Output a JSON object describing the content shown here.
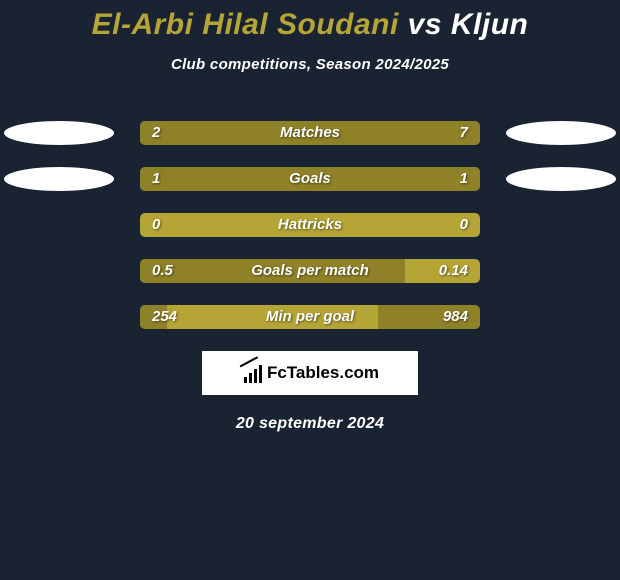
{
  "background_color": "#1a2332",
  "title": {
    "player1": "El-Arbi Hilal Soudani",
    "vs": "vs",
    "player2": "Kljun",
    "player1_color": "#b5a436",
    "player2_color": "#ffffff",
    "fontsize": 30
  },
  "subtitle": "Club competitions, Season 2024/2025",
  "bar": {
    "track_color": "#b5a436",
    "fill_color": "#8f8128",
    "track_width": 340,
    "track_height": 24,
    "radius": 5
  },
  "badge": {
    "color": "#ffffff",
    "width": 110,
    "height": 24
  },
  "rows": [
    {
      "metric": "Matches",
      "left": "2",
      "right": "7",
      "left_pct": 20,
      "right_pct": 80,
      "show_badges": true
    },
    {
      "metric": "Goals",
      "left": "1",
      "right": "1",
      "left_pct": 50,
      "right_pct": 50,
      "show_badges": true
    },
    {
      "metric": "Hattricks",
      "left": "0",
      "right": "0",
      "left_pct": 0,
      "right_pct": 0,
      "show_badges": false
    },
    {
      "metric": "Goals per match",
      "left": "0.5",
      "right": "0.14",
      "left_pct": 78,
      "right_pct": 0,
      "show_badges": false
    },
    {
      "metric": "Min per goal",
      "left": "254",
      "right": "984",
      "left_pct": 8,
      "right_pct": 30,
      "show_badges": false
    }
  ],
  "logo": {
    "text": "FcTables.com"
  },
  "date": "20 september 2024",
  "text_color": "#ffffff"
}
